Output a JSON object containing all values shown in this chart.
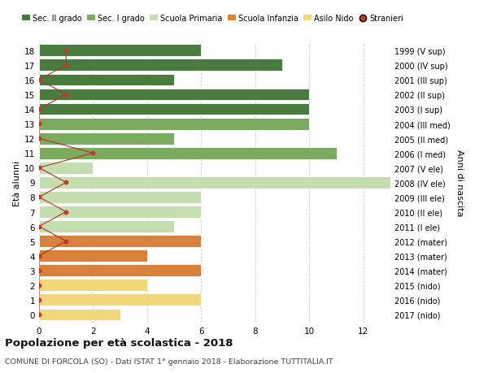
{
  "ages": [
    18,
    17,
    16,
    15,
    14,
    13,
    12,
    11,
    10,
    9,
    8,
    7,
    6,
    5,
    4,
    3,
    2,
    1,
    0
  ],
  "years": [
    "1999 (V sup)",
    "2000 (IV sup)",
    "2001 (III sup)",
    "2002 (II sup)",
    "2003 (I sup)",
    "2004 (III med)",
    "2005 (II med)",
    "2006 (I med)",
    "2007 (V ele)",
    "2008 (IV ele)",
    "2009 (III ele)",
    "2010 (II ele)",
    "2011 (I ele)",
    "2012 (mater)",
    "2013 (mater)",
    "2014 (mater)",
    "2015 (nido)",
    "2016 (nido)",
    "2017 (nido)"
  ],
  "bar_values": [
    6,
    9,
    5,
    10,
    10,
    10,
    5,
    11,
    2,
    13,
    6,
    6,
    5,
    6,
    4,
    6,
    4,
    6,
    3
  ],
  "bar_colors": [
    "#4a7c3f",
    "#4a7c3f",
    "#4a7c3f",
    "#4a7c3f",
    "#4a7c3f",
    "#7aab5e",
    "#7aab5e",
    "#7aab5e",
    "#c5deb0",
    "#c5deb0",
    "#c5deb0",
    "#c5deb0",
    "#c5deb0",
    "#d9813a",
    "#d9813a",
    "#d9813a",
    "#f0d878",
    "#f0d878",
    "#f0d878"
  ],
  "stranieri_x": [
    1,
    1,
    0,
    1,
    0,
    0,
    0,
    2,
    0,
    1,
    0,
    1,
    0,
    1,
    0,
    0,
    0,
    0,
    0
  ],
  "title": "Popolazione per età scolastica - 2018",
  "subtitle": "COMUNE DI FORCOLA (SO) - Dati ISTAT 1° gennaio 2018 - Elaborazione TUTTITALIA.IT",
  "ylabel": "Età alunni",
  "right_label": "Anni di nascita",
  "xlim": [
    0,
    13
  ],
  "xticks": [
    0,
    2,
    4,
    6,
    8,
    10,
    12
  ],
  "legend_labels": [
    "Sec. II grado",
    "Sec. I grado",
    "Scuola Primaria",
    "Scuola Infanzia",
    "Asilo Nido",
    "Stranieri"
  ],
  "legend_colors": [
    "#4a7c3f",
    "#7aab5e",
    "#c5deb0",
    "#d9813a",
    "#f0d878",
    "#c0392b"
  ],
  "stranieri_line_color": "#b03030",
  "dot_color": "#c0392b",
  "grid_color": "#cccccc",
  "bg_color": "#ffffff"
}
